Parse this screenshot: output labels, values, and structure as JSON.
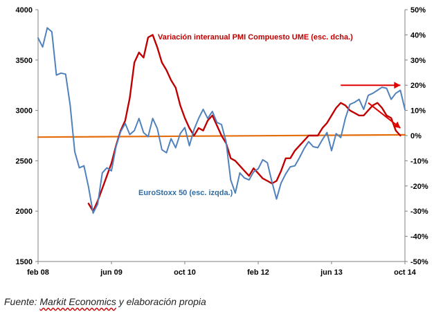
{
  "chart_data": {
    "type": "line",
    "title": "",
    "x_ticks": [
      "feb 08",
      "jun 09",
      "oct 10",
      "feb 12",
      "jun 13",
      "oct 14"
    ],
    "y_left": {
      "label": "EuroStoxx 50 (esc. izqda.)",
      "range": [
        1500,
        4000
      ],
      "ticks": [
        "4000",
        "3500",
        "3000",
        "2500",
        "2000",
        "1500"
      ],
      "tick_values": [
        4000,
        3500,
        3000,
        2500,
        2000,
        1500
      ]
    },
    "y_right": {
      "label": "Variación interanual PMI Compuesto UME (esc. dcha.)",
      "range": [
        -50,
        50
      ],
      "ticks": [
        "50%",
        "40%",
        "30%",
        "20%",
        "10%",
        "0%",
        "-10%",
        "-20%",
        "-30%",
        "-40%",
        "-50%"
      ],
      "tick_values": [
        50,
        40,
        30,
        20,
        10,
        0,
        -10,
        -20,
        -30,
        -40,
        -50
      ]
    },
    "x_range_months": [
      0,
      80
    ],
    "series": [
      {
        "name": "EuroStoxx 50 (esc. izqda.)",
        "axis": "left",
        "color": "#4f81bd",
        "x": [
          0,
          1,
          2,
          3,
          4,
          5,
          6,
          7,
          8,
          9,
          10,
          11,
          12,
          13,
          14,
          15,
          16,
          17,
          18,
          19,
          20,
          21,
          22,
          23,
          24,
          25,
          26,
          27,
          28,
          29,
          30,
          31,
          32,
          33,
          34,
          35,
          36,
          37,
          38,
          39,
          40,
          41,
          42,
          43,
          44,
          45,
          46,
          47,
          48,
          49,
          50,
          51,
          52,
          53,
          54,
          55,
          56,
          57,
          58,
          59,
          60,
          61,
          62,
          63,
          64,
          65,
          66,
          67,
          68,
          69,
          70,
          71,
          72,
          73,
          74,
          75,
          76,
          77,
          78,
          79,
          80
        ],
        "values": [
          3720,
          3630,
          3820,
          3780,
          3350,
          3370,
          3360,
          3050,
          2590,
          2430,
          2450,
          2240,
          1980,
          2070,
          2380,
          2430,
          2400,
          2640,
          2790,
          2870,
          2760,
          2800,
          2920,
          2780,
          2740,
          2920,
          2820,
          2610,
          2580,
          2720,
          2630,
          2770,
          2830,
          2650,
          2810,
          2920,
          3010,
          2920,
          2990,
          2880,
          2860,
          2690,
          2310,
          2180,
          2380,
          2330,
          2310,
          2390,
          2420,
          2510,
          2480,
          2290,
          2120,
          2280,
          2370,
          2440,
          2450,
          2530,
          2620,
          2690,
          2640,
          2630,
          2710,
          2780,
          2600,
          2770,
          2730,
          2920,
          3060,
          3080,
          3110,
          3010,
          3150,
          3170,
          3200,
          3230,
          3220,
          3110,
          3170,
          3200,
          3010
        ]
      },
      {
        "name": "Variación interanual PMI Compuesto UME (esc. dcha.)",
        "axis": "right",
        "color": "#c00000",
        "x": [
          11,
          12,
          13,
          14,
          15,
          16,
          17,
          18,
          19,
          20,
          21,
          22,
          23,
          24,
          25,
          26,
          27,
          28,
          29,
          30,
          31,
          32,
          33,
          34,
          35,
          36,
          37,
          38,
          39,
          40,
          41,
          42,
          43,
          44,
          45,
          46,
          47,
          48,
          49,
          50,
          51,
          52,
          53,
          54,
          55,
          56,
          57,
          58,
          59,
          60,
          61,
          62,
          63,
          64,
          65,
          66,
          67,
          68,
          69,
          70,
          71,
          72,
          73,
          74,
          75,
          76,
          77,
          78,
          79
        ],
        "values": [
          -27,
          -30,
          -26,
          -21,
          -16,
          -11,
          -4,
          2,
          6,
          15,
          29,
          33,
          31,
          39,
          40,
          35,
          29,
          26,
          22,
          19,
          12,
          7,
          3,
          0,
          3,
          2,
          6,
          8,
          4,
          0,
          -3,
          -9,
          -10,
          -12,
          -14,
          -16,
          -13,
          -15,
          -17,
          -18,
          -19,
          -18,
          -14,
          -9,
          -9,
          -6,
          -4,
          -2,
          0,
          0,
          0,
          3,
          5,
          8,
          11,
          13,
          12,
          10,
          9,
          8,
          8,
          10,
          12,
          13,
          11,
          8,
          7,
          2,
          0
        ]
      },
      {
        "name": "horizontal reference (esc. dcha.)",
        "axis": "right",
        "color": "#e46c0a",
        "x": [
          0,
          80
        ],
        "values": [
          -0.6,
          0.3
        ]
      }
    ],
    "annotations": [
      {
        "type": "arrow",
        "direction": "horizontal",
        "color": "#e00000",
        "from": {
          "x": 66,
          "y_right": 20
        },
        "to": {
          "x": 79,
          "y_right": 20
        }
      },
      {
        "type": "arrow",
        "direction": "down",
        "color": "#e00000",
        "from": {
          "x": 72,
          "y_right": 13
        },
        "to": {
          "x": 79,
          "y_right": 3
        }
      }
    ],
    "grid": false,
    "legend": "inline labels"
  },
  "source_text": {
    "prefix": "Fuente: ",
    "underlined": "Markit Economics",
    "suffix": " y elaboración propia"
  }
}
